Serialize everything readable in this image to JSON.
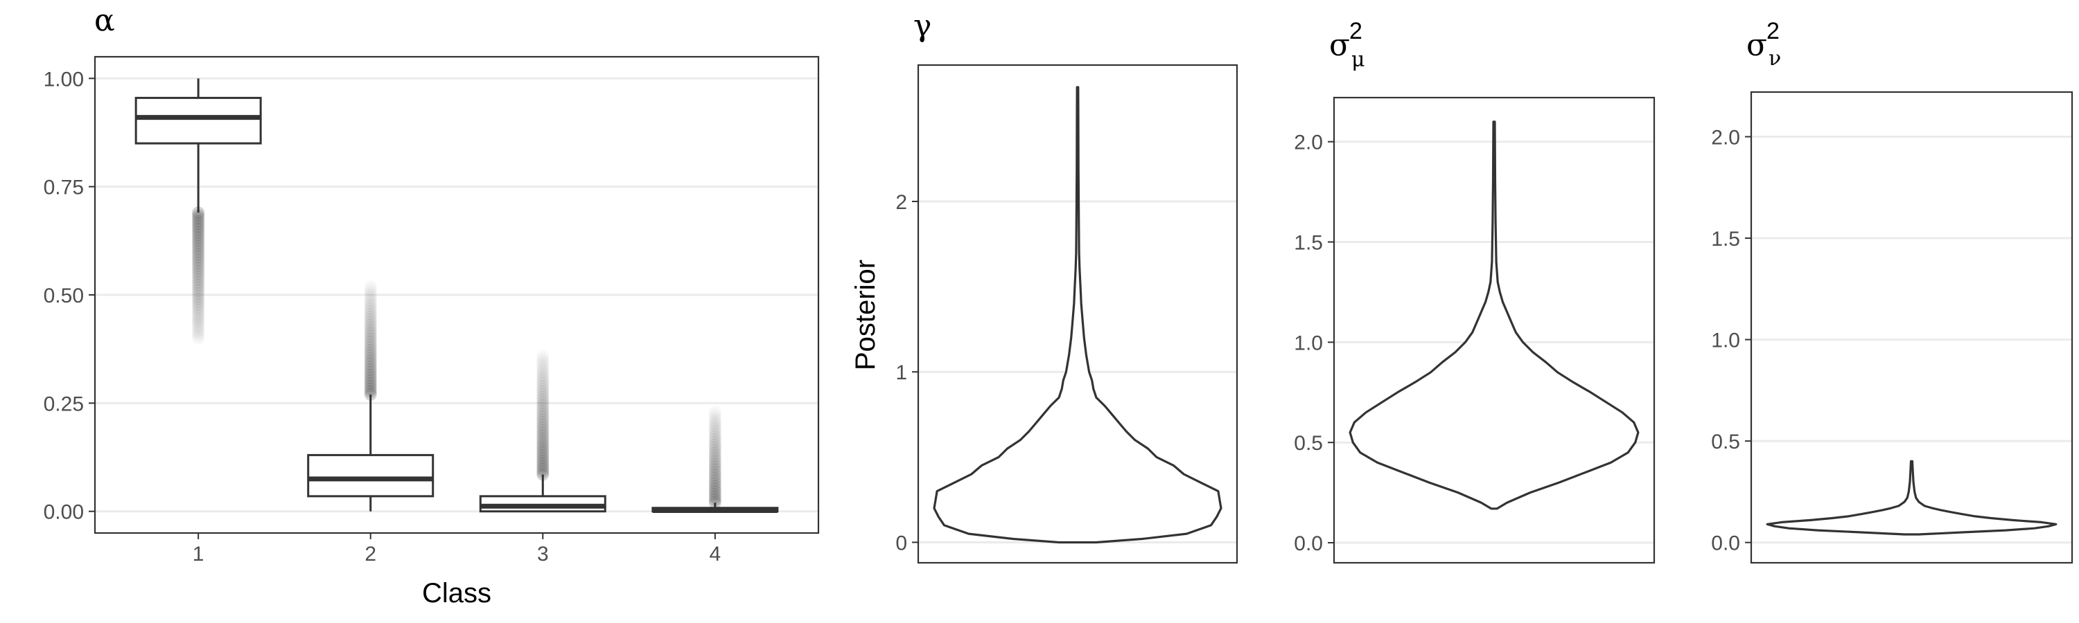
{
  "chart_data": [
    {
      "type": "box",
      "title": "α",
      "xlabel": "Class",
      "ylabel": "",
      "categories": [
        "1",
        "2",
        "3",
        "4"
      ],
      "ylim": [
        -0.05,
        1.05
      ],
      "yticks": [
        0,
        0.25,
        0.5,
        0.75,
        1
      ],
      "ytick_labels": [
        "0.00",
        "0.25",
        "0.50",
        "0.75",
        "1.00"
      ],
      "grid": "horizontal",
      "boxes": [
        {
          "category": "1",
          "min": 0.69,
          "q1": 0.85,
          "median": 0.91,
          "q3": 0.955,
          "max": 1.0,
          "outliers_low": 0.4,
          "outliers_high": 0.69
        },
        {
          "category": "2",
          "min": 0.0,
          "q1": 0.035,
          "median": 0.075,
          "q3": 0.13,
          "max": 0.27,
          "outliers_low": 0.27,
          "outliers_high": 0.52
        },
        {
          "category": "3",
          "min": 0.0,
          "q1": 0.0,
          "median": 0.012,
          "q3": 0.035,
          "max": 0.085,
          "outliers_low": 0.085,
          "outliers_high": 0.36
        },
        {
          "category": "4",
          "min": 0.0,
          "q1": 0.0,
          "median": 0.002,
          "q3": 0.008,
          "max": 0.02,
          "outliers_low": 0.02,
          "outliers_high": 0.23
        }
      ]
    },
    {
      "type": "violin",
      "title": "γ",
      "ylabel": "Posterior",
      "ylim": [
        -0.12,
        2.8
      ],
      "yticks": [
        0,
        1,
        2
      ],
      "ytick_labels": [
        "0",
        "1",
        "2"
      ],
      "grid": "horizontal",
      "density": [
        [
          0,
          0.13
        ],
        [
          0.02,
          0.45
        ],
        [
          0.05,
          0.76
        ],
        [
          0.1,
          0.93
        ],
        [
          0.15,
          0.97
        ],
        [
          0.2,
          1.0
        ],
        [
          0.25,
          0.99
        ],
        [
          0.3,
          0.98
        ],
        [
          0.35,
          0.86
        ],
        [
          0.4,
          0.74
        ],
        [
          0.45,
          0.67
        ],
        [
          0.5,
          0.55
        ],
        [
          0.55,
          0.49
        ],
        [
          0.6,
          0.4
        ],
        [
          0.65,
          0.34
        ],
        [
          0.7,
          0.29
        ],
        [
          0.75,
          0.24
        ],
        [
          0.8,
          0.19
        ],
        [
          0.85,
          0.13
        ],
        [
          0.9,
          0.11
        ],
        [
          0.95,
          0.1
        ],
        [
          1.0,
          0.08
        ],
        [
          1.05,
          0.07
        ],
        [
          1.1,
          0.06
        ],
        [
          1.2,
          0.045
        ],
        [
          1.3,
          0.035
        ],
        [
          1.4,
          0.025
        ],
        [
          1.5,
          0.02
        ],
        [
          1.6,
          0.014
        ],
        [
          1.7,
          0.01
        ],
        [
          1.9,
          0.008
        ],
        [
          2.2,
          0.006
        ],
        [
          2.5,
          0.005
        ],
        [
          2.67,
          0.004
        ]
      ]
    },
    {
      "type": "violin",
      "title": "σ",
      "title_sup": "2",
      "title_sub": "μ",
      "ylabel": "",
      "ylim": [
        -0.1,
        2.22
      ],
      "yticks": [
        0,
        0.5,
        1,
        1.5,
        2
      ],
      "ytick_labels": [
        "0.0",
        "0.5",
        "1.0",
        "1.5",
        "2.0"
      ],
      "grid": "horizontal",
      "density": [
        [
          0.17,
          0.02
        ],
        [
          0.2,
          0.09
        ],
        [
          0.25,
          0.25
        ],
        [
          0.3,
          0.45
        ],
        [
          0.35,
          0.63
        ],
        [
          0.4,
          0.81
        ],
        [
          0.45,
          0.93
        ],
        [
          0.5,
          0.98
        ],
        [
          0.55,
          1.0
        ],
        [
          0.6,
          0.97
        ],
        [
          0.65,
          0.89
        ],
        [
          0.7,
          0.78
        ],
        [
          0.75,
          0.67
        ],
        [
          0.8,
          0.55
        ],
        [
          0.85,
          0.44
        ],
        [
          0.9,
          0.36
        ],
        [
          0.95,
          0.27
        ],
        [
          1.0,
          0.2
        ],
        [
          1.05,
          0.15
        ],
        [
          1.1,
          0.12
        ],
        [
          1.15,
          0.09
        ],
        [
          1.2,
          0.06
        ],
        [
          1.25,
          0.04
        ],
        [
          1.3,
          0.025
        ],
        [
          1.4,
          0.015
        ],
        [
          1.6,
          0.01
        ],
        [
          1.8,
          0.007
        ],
        [
          2.1,
          0.005
        ]
      ]
    },
    {
      "type": "violin",
      "title": "σ",
      "title_sup": "2",
      "title_sub": "ν",
      "ylabel": "",
      "ylim": [
        -0.1,
        2.22
      ],
      "yticks": [
        0,
        0.5,
        1,
        1.5,
        2
      ],
      "ytick_labels": [
        "0.0",
        "0.5",
        "1.0",
        "1.5",
        "2.0"
      ],
      "grid": "horizontal",
      "density": [
        [
          0.04,
          0.05
        ],
        [
          0.05,
          0.35
        ],
        [
          0.06,
          0.65
        ],
        [
          0.07,
          0.85
        ],
        [
          0.08,
          0.95
        ],
        [
          0.09,
          1.0
        ],
        [
          0.1,
          0.9
        ],
        [
          0.11,
          0.7
        ],
        [
          0.12,
          0.55
        ],
        [
          0.13,
          0.43
        ],
        [
          0.14,
          0.35
        ],
        [
          0.15,
          0.27
        ],
        [
          0.16,
          0.2
        ],
        [
          0.17,
          0.14
        ],
        [
          0.18,
          0.09
        ],
        [
          0.2,
          0.05
        ],
        [
          0.22,
          0.03
        ],
        [
          0.25,
          0.02
        ],
        [
          0.3,
          0.012
        ],
        [
          0.35,
          0.008
        ],
        [
          0.4,
          0.005
        ]
      ]
    }
  ]
}
